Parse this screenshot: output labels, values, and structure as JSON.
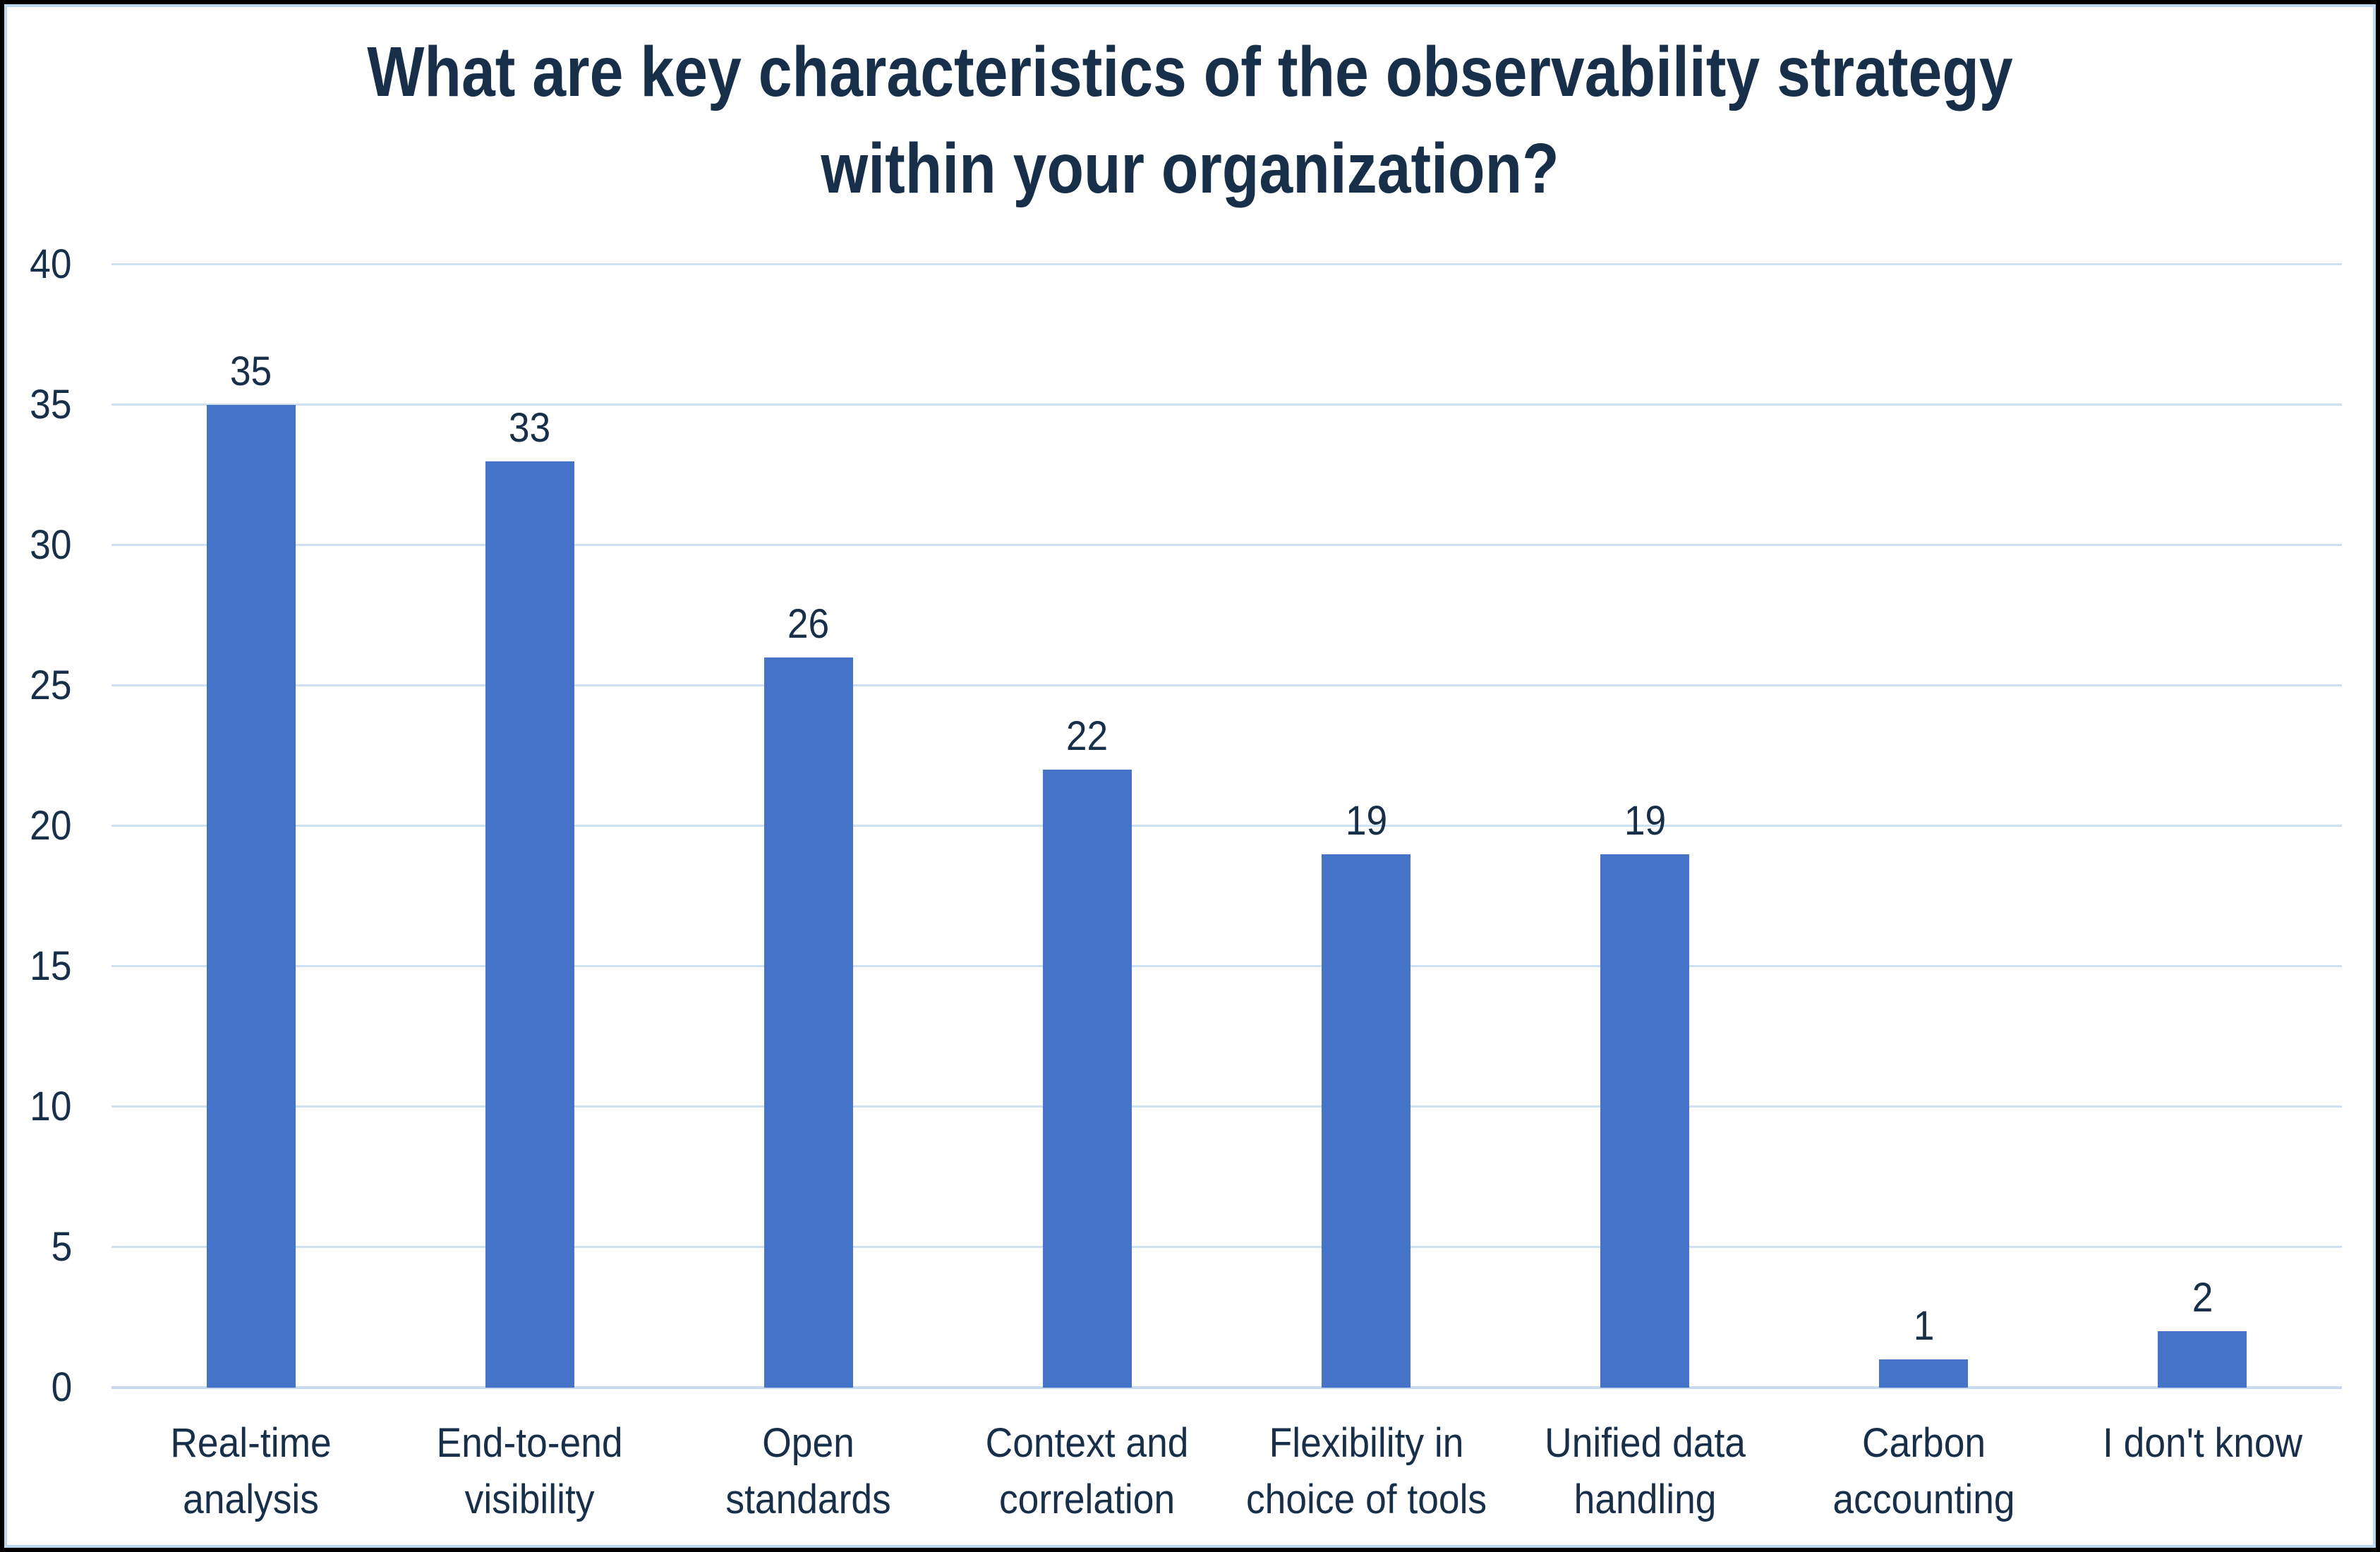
{
  "frame": {
    "border_color": "#000000",
    "accent_line_color": "#bdd7ee",
    "background": "#ffffff"
  },
  "chart_data": {
    "type": "bar",
    "title": "What are key characteristics of the observability strategy within your organization?",
    "title_lines": [
      "What are key characteristics of the observability strategy",
      "within your organization?"
    ],
    "categories": [
      "Real-time analysis",
      "End-to-end visibility",
      "Open standards",
      "Context and correlation",
      "Flexibility in choice of tools",
      "Unified data handling",
      "Carbon accounting",
      "I don't know"
    ],
    "category_lines": [
      [
        "Real-time",
        "analysis"
      ],
      [
        "End-to-end",
        "visibility"
      ],
      [
        "Open",
        "standards"
      ],
      [
        "Context and",
        "correlation"
      ],
      [
        "Flexibility in",
        "choice of tools"
      ],
      [
        "Unified data",
        "handling"
      ],
      [
        "Carbon",
        "accounting"
      ],
      [
        "I don't know"
      ]
    ],
    "values": [
      35,
      33,
      26,
      22,
      19,
      19,
      1,
      2
    ],
    "yticks": [
      0,
      5,
      10,
      15,
      20,
      25,
      30,
      35,
      40
    ],
    "ylim": [
      0,
      40
    ],
    "xlabel": "",
    "ylabel": "",
    "grid": "horizontal",
    "legend": "none",
    "data_labels": "above-bars",
    "bar_color": "#4573c8",
    "gridline_color": "#cfe0f3",
    "axis_line_color": "#c6d9ee",
    "text_color": "#182f4a"
  }
}
